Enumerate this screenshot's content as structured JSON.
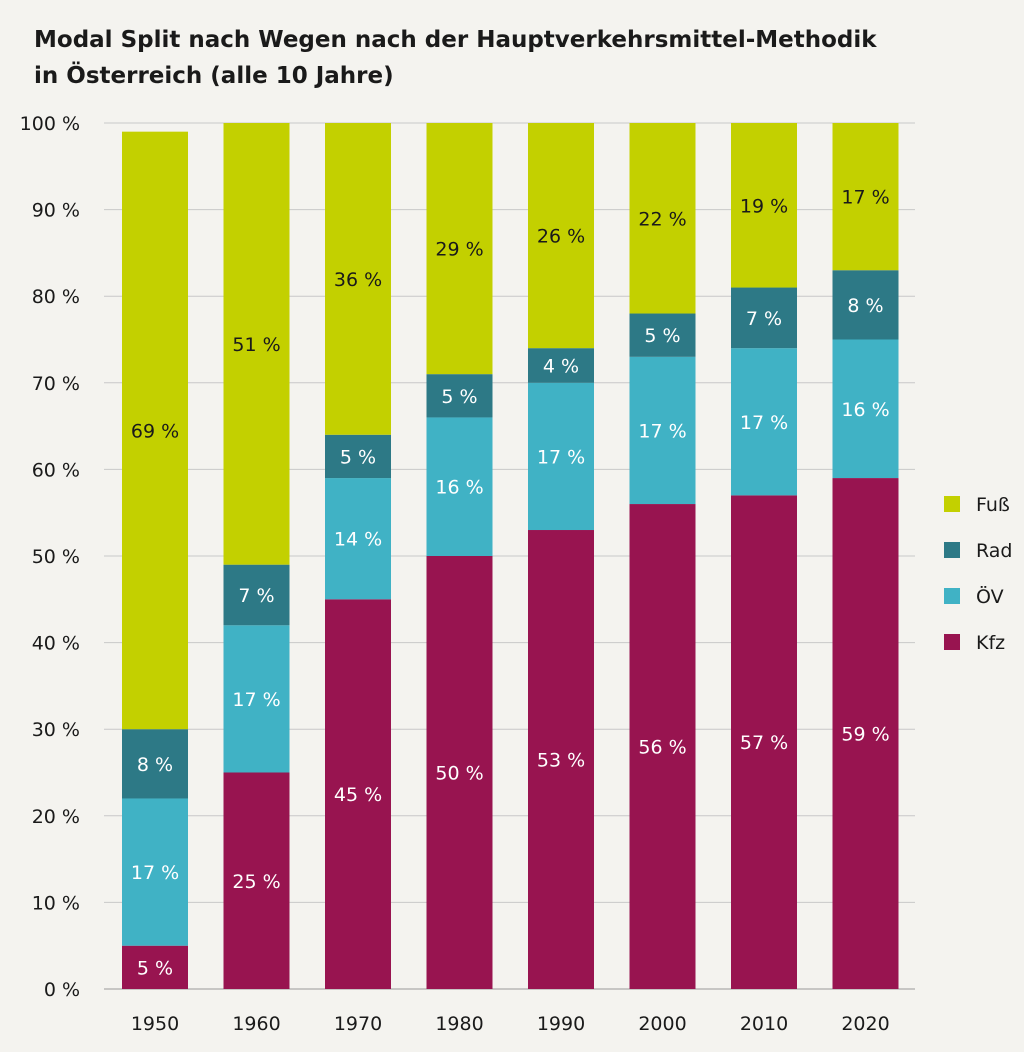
{
  "chart_data": {
    "type": "bar",
    "stacked": true,
    "title": "Modal Split nach Wegen nach der Hauptverkehrsmittel-Methodik",
    "subtitle": "in Österreich (alle 10 Jahre)",
    "categories": [
      "1950",
      "1960",
      "1970",
      "1980",
      "1990",
      "2000",
      "2010",
      "2020"
    ],
    "ylim": [
      0,
      100
    ],
    "yticks": [
      "0 %",
      "10 %",
      "20 %",
      "30 %",
      "40 %",
      "50 %",
      "60 %",
      "70 %",
      "80 %",
      "90 %",
      "100 %"
    ],
    "grid": true,
    "legend_position": "right",
    "series": [
      {
        "name": "Kfz",
        "color": "#981450",
        "label_color": "#ffffff",
        "values": [
          5,
          25,
          45,
          50,
          53,
          56,
          57,
          59
        ],
        "labels": [
          "5 %",
          "25 %",
          "45 %",
          "50 %",
          "53 %",
          "56 %",
          "57 %",
          "59 %"
        ]
      },
      {
        "name": "ÖV",
        "color": "#40b2c5",
        "label_color": "#ffffff",
        "values": [
          17,
          17,
          14,
          16,
          17,
          17,
          17,
          16
        ],
        "labels": [
          "17 %",
          "17 %",
          "14 %",
          "16 %",
          "17 %",
          "17 %",
          "17 %",
          "16 %"
        ]
      },
      {
        "name": "Rad",
        "color": "#2d7986",
        "label_color": "#ffffff",
        "values": [
          8,
          7,
          5,
          5,
          4,
          5,
          7,
          8
        ],
        "labels": [
          "8 %",
          "7 %",
          "5 %",
          "5 %",
          "4 %",
          "5 %",
          "7 %",
          "8 %"
        ]
      },
      {
        "name": "Fuß",
        "color": "#c3d000",
        "label_color": "#1a1a1a",
        "values": [
          69,
          51,
          36,
          29,
          26,
          22,
          19,
          17
        ],
        "labels": [
          "69 %",
          "51 %",
          "36 %",
          "29 %",
          "26 %",
          "22 %",
          "19 %",
          "17 %"
        ]
      }
    ],
    "legend_order": [
      "Fuß",
      "Rad",
      "ÖV",
      "Kfz"
    ]
  }
}
